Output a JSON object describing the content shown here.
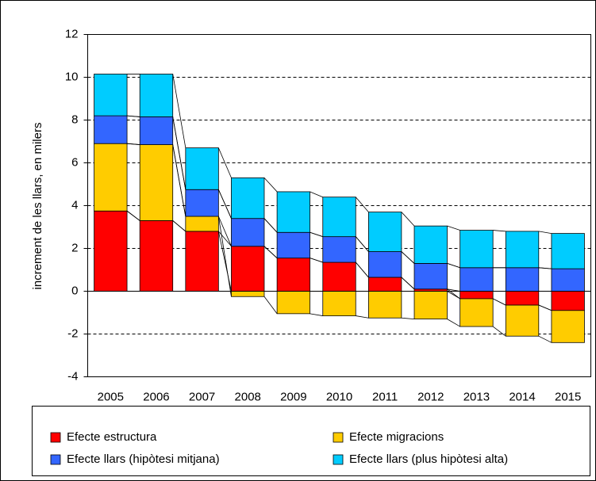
{
  "chart_data": {
    "type": "stacked_bar",
    "ylabel": "increment de les llars, en milers",
    "categories": [
      "2005",
      "2006",
      "2007",
      "2008",
      "2009",
      "2010",
      "2011",
      "2012",
      "2013",
      "2014",
      "2015"
    ],
    "series": [
      {
        "name": "Efecte estructura",
        "color": "#ff0000",
        "values": [
          3.75,
          3.3,
          2.8,
          2.1,
          1.55,
          1.35,
          0.65,
          0.1,
          -0.35,
          -0.65,
          -0.9
        ]
      },
      {
        "name": "Efecte migracions",
        "color": "#ffcc00",
        "values": [
          3.15,
          3.55,
          0.7,
          -0.25,
          -1.05,
          -1.15,
          -1.25,
          -1.3,
          -1.3,
          -1.45,
          -1.5
        ]
      },
      {
        "name": "Efecte llars (hipòtesi mitjana)",
        "color": "#3366ff",
        "values": [
          1.3,
          1.3,
          1.25,
          1.3,
          1.2,
          1.2,
          1.2,
          1.2,
          1.1,
          1.1,
          1.05
        ]
      },
      {
        "name": "Efecte llars (plus hipòtesi alta)",
        "color": "#00ccff",
        "values": [
          1.95,
          2.0,
          1.95,
          1.9,
          1.9,
          1.85,
          1.85,
          1.75,
          1.75,
          1.7,
          1.65
        ]
      }
    ],
    "ylim": [
      -4,
      12
    ],
    "yticks": [
      -4,
      -2,
      0,
      2,
      4,
      6,
      8,
      10,
      12
    ],
    "grid": true,
    "legend": "bottom"
  }
}
